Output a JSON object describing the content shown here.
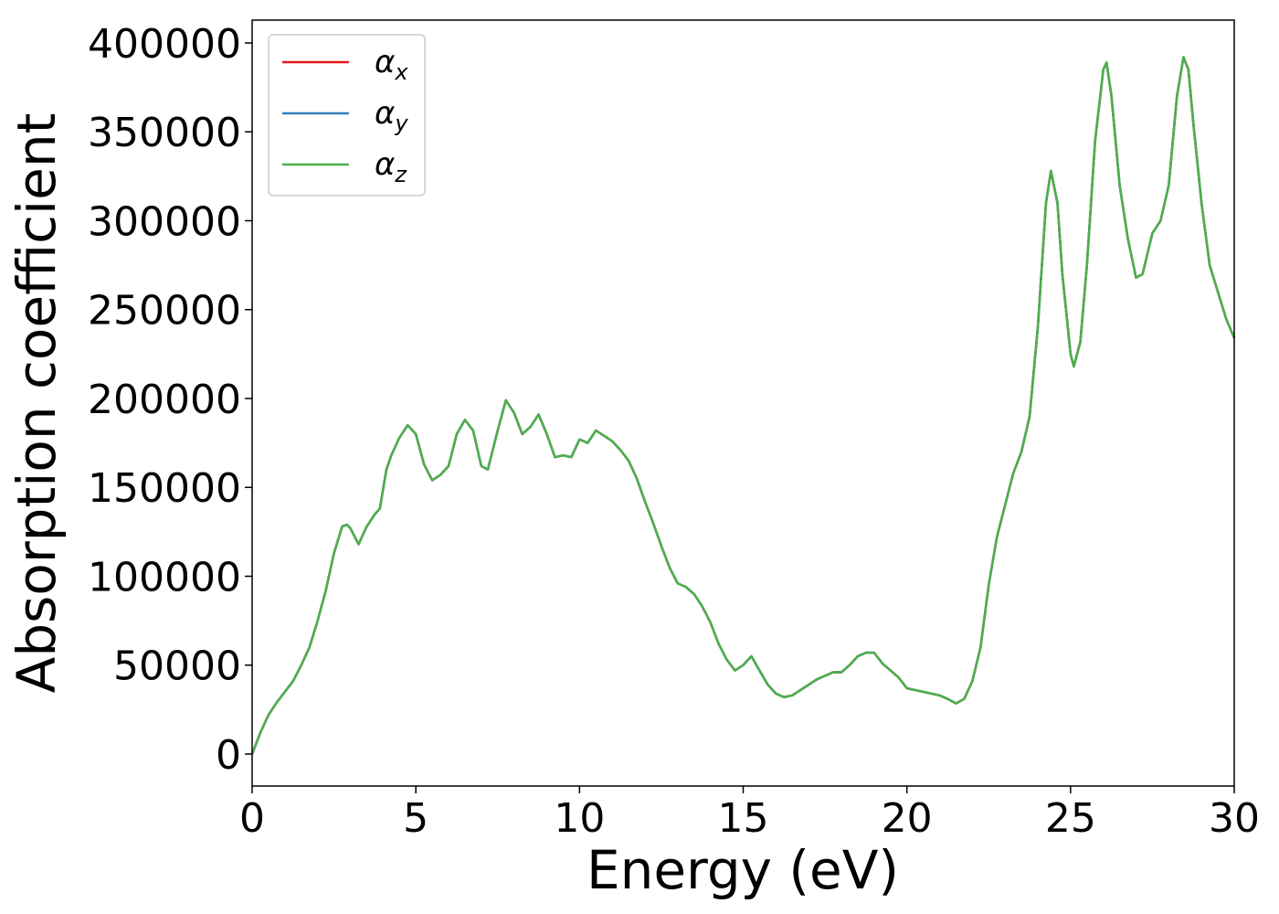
{
  "chart_data": {
    "type": "line",
    "xlabel": "Energy (eV)",
    "ylabel": "Absorption coefficient",
    "x": [
      0,
      0.25,
      0.5,
      0.75,
      1,
      1.25,
      1.5,
      1.75,
      2,
      2.25,
      2.5,
      2.75,
      2.9,
      3,
      3.25,
      3.5,
      3.75,
      3.9,
      4.1,
      4.25,
      4.5,
      4.75,
      5,
      5.25,
      5.5,
      5.75,
      6,
      6.25,
      6.5,
      6.75,
      7,
      7.2,
      7.5,
      7.75,
      8,
      8.25,
      8.5,
      8.75,
      9,
      9.25,
      9.5,
      9.75,
      10,
      10.25,
      10.5,
      10.75,
      11,
      11.25,
      11.5,
      11.75,
      12,
      12.25,
      12.5,
      12.75,
      13,
      13.25,
      13.5,
      13.75,
      14,
      14.25,
      14.5,
      14.75,
      15,
      15.25,
      15.5,
      15.75,
      16,
      16.25,
      16.5,
      16.75,
      17,
      17.25,
      17.5,
      17.75,
      18,
      18.25,
      18.5,
      18.75,
      19,
      19.25,
      19.5,
      19.75,
      20,
      20.5,
      21,
      21.25,
      21.5,
      21.75,
      22,
      22.25,
      22.5,
      22.75,
      23,
      23.25,
      23.5,
      23.75,
      24,
      24.25,
      24.4,
      24.6,
      24.75,
      25,
      25.1,
      25.3,
      25.5,
      25.75,
      26,
      26.1,
      26.25,
      26.5,
      26.75,
      27,
      27.2,
      27.5,
      27.75,
      28,
      28.25,
      28.45,
      28.6,
      28.75,
      29,
      29.25,
      29.5,
      29.75,
      30
    ],
    "series": [
      {
        "name": "αx",
        "color": "#e41a1c",
        "values": [
          0,
          12000,
          22000,
          29000,
          35000,
          41000,
          50000,
          60000,
          75000,
          92000,
          113000,
          128000,
          129000,
          127000,
          118000,
          128000,
          135000,
          138000,
          160000,
          168000,
          178000,
          185000,
          180000,
          163000,
          154000,
          157000,
          162000,
          180000,
          188000,
          182000,
          162000,
          160000,
          182000,
          199000,
          192000,
          180000,
          184000,
          191000,
          180000,
          167000,
          168000,
          167000,
          177000,
          175000,
          182000,
          179000,
          176000,
          171000,
          165000,
          155000,
          142000,
          130000,
          117000,
          105000,
          96000,
          94000,
          90000,
          83000,
          74000,
          62000,
          53000,
          47000,
          50000,
          55000,
          47000,
          39000,
          34000,
          32000,
          33000,
          36000,
          39000,
          42000,
          44000,
          46000,
          46000,
          50000,
          55000,
          57000,
          57000,
          51000,
          47000,
          43000,
          37000,
          35000,
          33000,
          31000,
          28500,
          31000,
          41000,
          60000,
          95000,
          122000,
          140000,
          158000,
          170000,
          190000,
          240000,
          310000,
          328000,
          310000,
          270000,
          225000,
          218000,
          232000,
          275000,
          345000,
          385000,
          389000,
          370000,
          320000,
          290000,
          268000,
          270000,
          293000,
          300000,
          320000,
          370000,
          392000,
          385000,
          355000,
          310000,
          275000,
          260000,
          245000,
          234000
        ]
      },
      {
        "name": "αy",
        "color": "#377eb8",
        "values": [
          0,
          12000,
          22000,
          29000,
          35000,
          41000,
          50000,
          60000,
          75000,
          92000,
          113000,
          128000,
          129000,
          127000,
          118000,
          128000,
          135000,
          138000,
          160000,
          168000,
          178000,
          185000,
          180000,
          163000,
          154000,
          157000,
          162000,
          180000,
          188000,
          182000,
          162000,
          160000,
          182000,
          199000,
          192000,
          180000,
          184000,
          191000,
          180000,
          167000,
          168000,
          167000,
          177000,
          175000,
          182000,
          179000,
          176000,
          171000,
          165000,
          155000,
          142000,
          130000,
          117000,
          105000,
          96000,
          94000,
          90000,
          83000,
          74000,
          62000,
          53000,
          47000,
          50000,
          55000,
          47000,
          39000,
          34000,
          32000,
          33000,
          36000,
          39000,
          42000,
          44000,
          46000,
          46000,
          50000,
          55000,
          57000,
          57000,
          51000,
          47000,
          43000,
          37000,
          35000,
          33000,
          31000,
          28500,
          31000,
          41000,
          60000,
          95000,
          122000,
          140000,
          158000,
          170000,
          190000,
          240000,
          310000,
          328000,
          310000,
          270000,
          225000,
          218000,
          232000,
          275000,
          345000,
          385000,
          389000,
          370000,
          320000,
          290000,
          268000,
          270000,
          293000,
          300000,
          320000,
          370000,
          392000,
          385000,
          355000,
          310000,
          275000,
          260000,
          245000,
          234000
        ]
      },
      {
        "name": "αz",
        "color": "#4daf4a",
        "values": [
          0,
          12000,
          22000,
          29000,
          35000,
          41000,
          50000,
          60000,
          75000,
          92000,
          113000,
          128000,
          129000,
          127000,
          118000,
          128000,
          135000,
          138000,
          160000,
          168000,
          178000,
          185000,
          180000,
          163000,
          154000,
          157000,
          162000,
          180000,
          188000,
          182000,
          162000,
          160000,
          182000,
          199000,
          192000,
          180000,
          184000,
          191000,
          180000,
          167000,
          168000,
          167000,
          177000,
          175000,
          182000,
          179000,
          176000,
          171000,
          165000,
          155000,
          142000,
          130000,
          117000,
          105000,
          96000,
          94000,
          90000,
          83000,
          74000,
          62000,
          53000,
          47000,
          50000,
          55000,
          47000,
          39000,
          34000,
          32000,
          33000,
          36000,
          39000,
          42000,
          44000,
          46000,
          46000,
          50000,
          55000,
          57000,
          57000,
          51000,
          47000,
          43000,
          37000,
          35000,
          33000,
          31000,
          28500,
          31000,
          41000,
          60000,
          95000,
          122000,
          140000,
          158000,
          170000,
          190000,
          240000,
          310000,
          328000,
          310000,
          270000,
          225000,
          218000,
          232000,
          275000,
          345000,
          385000,
          389000,
          370000,
          320000,
          290000,
          268000,
          270000,
          293000,
          300000,
          320000,
          370000,
          392000,
          385000,
          355000,
          310000,
          275000,
          260000,
          245000,
          234000
        ]
      }
    ],
    "xlim": [
      0,
      30
    ],
    "xticks": [
      0,
      5,
      10,
      15,
      20,
      25,
      30
    ],
    "ylim": [
      -18000,
      412850
    ],
    "yticks": [
      0,
      50000,
      100000,
      150000,
      200000,
      250000,
      300000,
      350000,
      400000
    ],
    "grid": false,
    "legend": "upper left"
  }
}
